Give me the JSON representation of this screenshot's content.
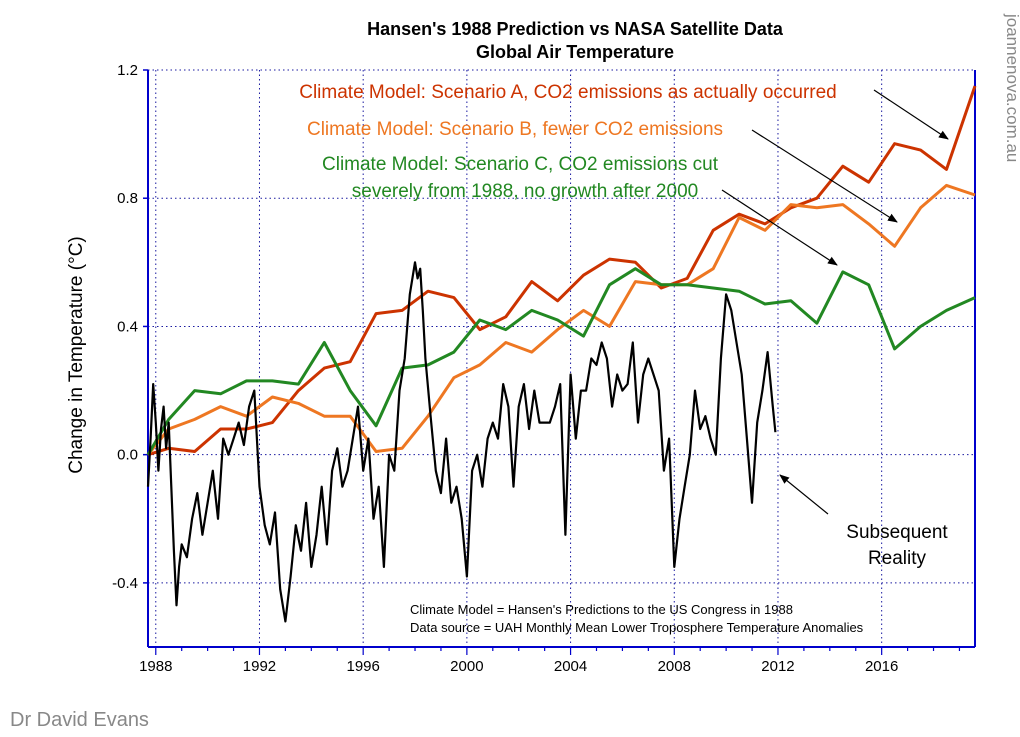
{
  "chart_data": {
    "type": "line",
    "title": "Hansen's 1988 Prediction vs NASA Satellite Data",
    "subtitle": "Global Air Temperature",
    "ylabel": "Change in Temperature (°C)",
    "xlabel": "",
    "xlim": [
      1987.7,
      2019.6
    ],
    "ylim": [
      -0.6,
      1.2
    ],
    "x_ticks": [
      "1988",
      "1992",
      "1996",
      "2000",
      "2004",
      "2008",
      "2012",
      "2016"
    ],
    "y_ticks": [
      "-0.4",
      "0.0",
      "0.4",
      "0.8",
      "1.2"
    ],
    "grid": true,
    "series": [
      {
        "name": "Climate Model: Scenario A, CO2 emissions as actually occurred",
        "color": "#cc3300",
        "x": [
          1987.7,
          1988.5,
          1989.5,
          1990.5,
          1991.5,
          1992.5,
          1993.5,
          1994.5,
          1995.5,
          1996.5,
          1997.5,
          1998.5,
          1999.5,
          2000.5,
          2001.5,
          2002.5,
          2003.5,
          2004.5,
          2005.5,
          2006.5,
          2007.5,
          2008.5,
          2009.5,
          2010.5,
          2011.5,
          2012.5,
          2013.5,
          2014.5,
          2015.5,
          2016.5,
          2017.5,
          2018.5,
          2019.6
        ],
        "y": [
          0.0,
          0.02,
          0.01,
          0.08,
          0.08,
          0.1,
          0.2,
          0.27,
          0.29,
          0.44,
          0.45,
          0.51,
          0.49,
          0.39,
          0.43,
          0.54,
          0.48,
          0.56,
          0.61,
          0.6,
          0.52,
          0.55,
          0.7,
          0.75,
          0.72,
          0.77,
          0.8,
          0.9,
          0.85,
          0.97,
          0.95,
          0.89,
          1.15
        ]
      },
      {
        "name": "Climate Model: Scenario B, fewer CO2 emissions",
        "color": "#ee7722",
        "x": [
          1987.7,
          1988.5,
          1989.5,
          1990.5,
          1991.5,
          1992.5,
          1993.5,
          1994.5,
          1995.5,
          1996.5,
          1997.5,
          1998.5,
          1999.5,
          2000.5,
          2001.5,
          2002.5,
          2003.5,
          2004.5,
          2005.5,
          2006.5,
          2007.5,
          2008.5,
          2009.5,
          2010.5,
          2011.5,
          2012.5,
          2013.5,
          2014.5,
          2015.5,
          2016.5,
          2017.5,
          2018.5,
          2019.6
        ],
        "y": [
          0.0,
          0.08,
          0.11,
          0.15,
          0.12,
          0.18,
          0.16,
          0.12,
          0.12,
          0.01,
          0.02,
          0.12,
          0.24,
          0.28,
          0.35,
          0.32,
          0.39,
          0.45,
          0.4,
          0.54,
          0.53,
          0.53,
          0.58,
          0.74,
          0.7,
          0.78,
          0.77,
          0.78,
          0.72,
          0.65,
          0.77,
          0.84,
          0.81
        ]
      },
      {
        "name": "Climate Model: Scenario C, CO2 emissions cut severely from 1988, no growth after 2000",
        "color": "#228822",
        "x": [
          1987.7,
          1988.5,
          1989.5,
          1990.5,
          1991.5,
          1992.5,
          1993.5,
          1994.5,
          1995.5,
          1996.5,
          1997.5,
          1998.5,
          1999.5,
          2000.5,
          2001.5,
          2002.5,
          2003.5,
          2004.5,
          2005.5,
          2006.5,
          2007.5,
          2008.5,
          2009.5,
          2010.5,
          2011.5,
          2012.5,
          2013.5,
          2014.5,
          2015.5,
          2016.5,
          2017.5,
          2018.5,
          2019.6
        ],
        "y": [
          0.0,
          0.11,
          0.2,
          0.19,
          0.23,
          0.23,
          0.22,
          0.35,
          0.2,
          0.09,
          0.27,
          0.28,
          0.32,
          0.42,
          0.39,
          0.45,
          0.42,
          0.37,
          0.53,
          0.58,
          0.53,
          0.53,
          0.52,
          0.51,
          0.47,
          0.48,
          0.41,
          0.57,
          0.53,
          0.33,
          0.4,
          0.45,
          0.49
        ]
      },
      {
        "name": "Subsequent Reality",
        "color": "#000000",
        "x": [
          1987.7,
          1987.8,
          1987.9,
          1988.0,
          1988.1,
          1988.2,
          1988.3,
          1988.4,
          1988.5,
          1988.6,
          1988.7,
          1988.8,
          1988.9,
          1989.0,
          1989.2,
          1989.4,
          1989.6,
          1989.8,
          1990.0,
          1990.2,
          1990.4,
          1990.6,
          1990.8,
          1991.0,
          1991.2,
          1991.4,
          1991.6,
          1991.8,
          1992.0,
          1992.2,
          1992.4,
          1992.6,
          1992.8,
          1993.0,
          1993.2,
          1993.4,
          1993.6,
          1993.8,
          1994.0,
          1994.2,
          1994.4,
          1994.6,
          1994.8,
          1995.0,
          1995.2,
          1995.4,
          1995.6,
          1995.8,
          1996.0,
          1996.2,
          1996.4,
          1996.6,
          1996.8,
          1997.0,
          1997.2,
          1997.4,
          1997.6,
          1997.8,
          1998.0,
          1998.1,
          1998.2,
          1998.3,
          1998.4,
          1998.6,
          1998.8,
          1999.0,
          1999.2,
          1999.4,
          1999.6,
          1999.8,
          2000.0,
          2000.2,
          2000.4,
          2000.6,
          2000.8,
          2001.0,
          2001.2,
          2001.4,
          2001.6,
          2001.8,
          2002.0,
          2002.2,
          2002.4,
          2002.6,
          2002.8,
          2003.0,
          2003.2,
          2003.4,
          2003.6,
          2003.8,
          2004.0,
          2004.2,
          2004.4,
          2004.6,
          2004.8,
          2005.0,
          2005.2,
          2005.4,
          2005.6,
          2005.8,
          2006.0,
          2006.2,
          2006.4,
          2006.6,
          2006.8,
          2007.0,
          2007.2,
          2007.4,
          2007.6,
          2007.8,
          2008.0,
          2008.2,
          2008.4,
          2008.6,
          2008.8,
          2009.0,
          2009.2,
          2009.4,
          2009.6,
          2009.8,
          2010.0,
          2010.2,
          2010.4,
          2010.6,
          2010.8,
          2011.0,
          2011.2,
          2011.4,
          2011.6,
          2011.8,
          2011.9
        ],
        "y": [
          -0.1,
          0.05,
          0.22,
          0.1,
          -0.05,
          0.08,
          0.15,
          0.02,
          0.1,
          -0.1,
          -0.3,
          -0.47,
          -0.35,
          -0.28,
          -0.32,
          -0.2,
          -0.12,
          -0.25,
          -0.15,
          -0.05,
          -0.2,
          0.05,
          0.0,
          0.05,
          0.1,
          0.03,
          0.15,
          0.2,
          -0.1,
          -0.22,
          -0.28,
          -0.18,
          -0.42,
          -0.52,
          -0.38,
          -0.22,
          -0.3,
          -0.15,
          -0.35,
          -0.25,
          -0.1,
          -0.28,
          -0.05,
          0.02,
          -0.1,
          -0.05,
          0.05,
          0.15,
          -0.05,
          0.05,
          -0.2,
          -0.1,
          -0.35,
          0.0,
          -0.05,
          0.2,
          0.3,
          0.5,
          0.6,
          0.55,
          0.58,
          0.45,
          0.3,
          0.12,
          -0.05,
          -0.12,
          0.05,
          -0.15,
          -0.1,
          -0.2,
          -0.38,
          -0.05,
          0.0,
          -0.1,
          0.05,
          0.1,
          0.05,
          0.22,
          0.15,
          -0.1,
          0.15,
          0.22,
          0.08,
          0.2,
          0.1,
          0.1,
          0.1,
          0.15,
          0.22,
          -0.25,
          0.25,
          0.05,
          0.2,
          0.2,
          0.3,
          0.28,
          0.35,
          0.3,
          0.15,
          0.25,
          0.2,
          0.22,
          0.35,
          0.1,
          0.25,
          0.3,
          0.25,
          0.2,
          -0.05,
          0.05,
          -0.35,
          -0.2,
          -0.1,
          0.0,
          0.2,
          0.08,
          0.12,
          0.05,
          0.0,
          0.3,
          0.5,
          0.45,
          0.35,
          0.25,
          0.05,
          -0.15,
          0.1,
          0.2,
          0.32,
          0.15,
          0.07
        ]
      }
    ],
    "annotations": {
      "scenario_a_label": "Climate Model: Scenario A, CO2 emissions as actually occurred",
      "scenario_b_label": "Climate Model: Scenario B, fewer CO2 emissions",
      "scenario_c_label_line1": "Climate Model: Scenario C, CO2 emissions cut",
      "scenario_c_label_line2": "severely from 1988, no growth after 2000",
      "reality_label_line1": "Subsequent",
      "reality_label_line2": "Reality",
      "note_line1": "Climate Model = Hansen's Predictions to the US Congress in 1988",
      "note_line2": "Data source = UAH Monthly Mean Lower Troposphere Temperature Anomalies"
    }
  },
  "credits": {
    "author": "Dr David Evans",
    "site": "joannenova.com.au"
  }
}
